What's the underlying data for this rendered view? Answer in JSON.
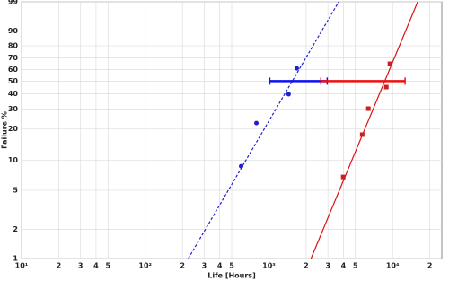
{
  "chart_data": {
    "type": "weibull",
    "x_label": "Life [Hours]",
    "y_label": "Failure %",
    "xscale": "log",
    "yscale": "weibull",
    "grid": true,
    "xlim": [
      10,
      25000
    ],
    "ylim": [
      1,
      99
    ],
    "xticks": [
      {
        "value": 10,
        "label": "10¹"
      },
      {
        "value": 20,
        "label": "2"
      },
      {
        "value": 30,
        "label": "3"
      },
      {
        "value": 40,
        "label": "4"
      },
      {
        "value": 50,
        "label": "5"
      },
      {
        "value": 100,
        "label": "10²"
      },
      {
        "value": 200,
        "label": "2"
      },
      {
        "value": 300,
        "label": "3"
      },
      {
        "value": 400,
        "label": "4"
      },
      {
        "value": 500,
        "label": "5"
      },
      {
        "value": 1000,
        "label": "10³"
      },
      {
        "value": 2000,
        "label": "2"
      },
      {
        "value": 3000,
        "label": "3"
      },
      {
        "value": 4000,
        "label": "4"
      },
      {
        "value": 5000,
        "label": "5"
      },
      {
        "value": 10000,
        "label": "10⁴"
      },
      {
        "value": 20000,
        "label": "2"
      }
    ],
    "yticks": [
      1,
      2,
      5,
      10,
      20,
      30,
      40,
      50,
      60,
      70,
      80,
      90,
      99
    ],
    "series": [
      {
        "color": "#1f1fcc",
        "marker": "circle",
        "x": [
          596,
          792,
          1442,
          1679
        ],
        "values": [
          8.7,
          22.5,
          39.8,
          61
        ]
      },
      {
        "color": "#cc1f1f",
        "marker": "square",
        "x": [
          3990,
          5680,
          6370,
          8900,
          9510
        ],
        "values": [
          6.8,
          17.6,
          30.2,
          45.2,
          65
        ]
      }
    ],
    "fit_lines": [
      {
        "color": "#1f1fcc",
        "style": "dashed",
        "x": [
          223,
          3670
        ],
        "values": [
          1,
          99
        ]
      },
      {
        "color": "#dd1111",
        "style": "solid",
        "x": [
          2190,
          15960
        ],
        "values": [
          1,
          99
        ]
      }
    ],
    "intervals": [
      {
        "color": "#1010ee",
        "value": 50,
        "x": [
          1016,
          2960
        ]
      },
      {
        "color": "#ee1010",
        "value": 50,
        "x": [
          2630,
          12620
        ]
      }
    ]
  }
}
